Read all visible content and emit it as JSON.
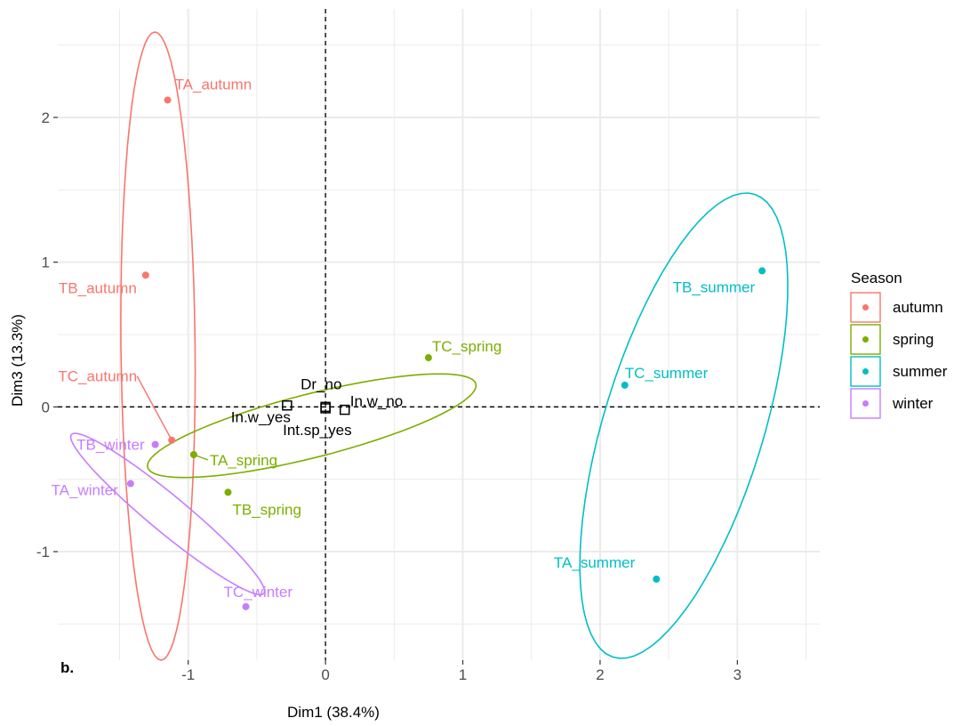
{
  "chart_data": {
    "type": "scatter",
    "panel_tag": "b.",
    "xlabel": "Dim1 (38.4%)",
    "ylabel": "Dim3 (13.3%)",
    "xlim": [
      -1.95,
      3.6
    ],
    "ylim": [
      -1.75,
      2.75
    ],
    "x_ticks": [
      -1,
      0,
      1,
      2,
      3
    ],
    "y_ticks": [
      -1,
      0,
      1,
      2
    ],
    "grid": true,
    "legend": {
      "title": "Season",
      "placement": "right",
      "entries": [
        {
          "name": "autumn",
          "color": "#F8766D"
        },
        {
          "name": "spring",
          "color": "#7CAE00"
        },
        {
          "name": "summer",
          "color": "#00BFC4"
        },
        {
          "name": "winter",
          "color": "#C77CFF"
        }
      ]
    },
    "individuals": [
      {
        "label": "TA_autumn",
        "group": "autumn",
        "x": -1.15,
        "y": 2.12
      },
      {
        "label": "TB_autumn",
        "group": "autumn",
        "x": -1.31,
        "y": 0.91
      },
      {
        "label": "TC_autumn",
        "group": "autumn",
        "x": -1.12,
        "y": -0.23
      },
      {
        "label": "TA_spring",
        "group": "spring",
        "x": -0.96,
        "y": -0.33
      },
      {
        "label": "TB_spring",
        "group": "spring",
        "x": -0.71,
        "y": -0.59
      },
      {
        "label": "TC_spring",
        "group": "spring",
        "x": 0.75,
        "y": 0.34
      },
      {
        "label": "TA_summer",
        "group": "summer",
        "x": 2.41,
        "y": -1.19
      },
      {
        "label": "TB_summer",
        "group": "summer",
        "x": 3.18,
        "y": 0.94
      },
      {
        "label": "TC_summer",
        "group": "summer",
        "x": 2.18,
        "y": 0.15
      },
      {
        "label": "TA_winter",
        "group": "winter",
        "x": -1.42,
        "y": -0.53
      },
      {
        "label": "TB_winter",
        "group": "winter",
        "x": -1.24,
        "y": -0.26
      },
      {
        "label": "TC_winter",
        "group": "winter",
        "x": -0.58,
        "y": -1.38
      }
    ],
    "supplementary": [
      {
        "label": "Dr_no",
        "x": 0.0,
        "y": 0.0
      },
      {
        "label": "In.w_no",
        "x": 0.14,
        "y": -0.02
      },
      {
        "label": "In.w_yes",
        "x": -0.28,
        "y": 0.01
      },
      {
        "label": "Int.sp_yes",
        "x": 0.0,
        "y": -0.01
      }
    ],
    "ellipses": [
      {
        "group": "autumn",
        "cx": -1.22,
        "cy": 0.42,
        "rx": 0.27,
        "ry": 2.17,
        "angle": 0.6
      },
      {
        "group": "spring",
        "cx": -0.1,
        "cy": -0.13,
        "rx": 1.23,
        "ry": 0.22,
        "angle": 13.5
      },
      {
        "group": "summer",
        "cx": 2.61,
        "cy": -0.13,
        "rx": 0.58,
        "ry": 1.68,
        "angle": -18
      },
      {
        "group": "winter",
        "cx": -1.15,
        "cy": -0.74,
        "rx": 0.13,
        "ry": 0.89,
        "angle": 52
      }
    ]
  }
}
